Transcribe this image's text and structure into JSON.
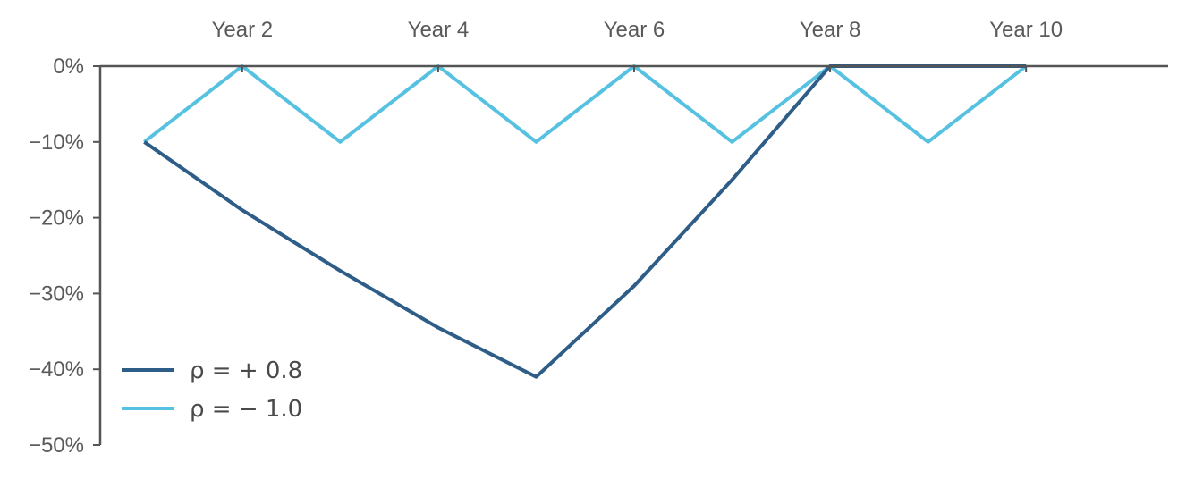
{
  "chart_data": {
    "type": "line",
    "title": "",
    "xlabel": "",
    "ylabel": "",
    "x": [
      1,
      2,
      3,
      4,
      5,
      6,
      7,
      8,
      9,
      10
    ],
    "x_tick_values": [
      2,
      4,
      6,
      8,
      10
    ],
    "x_tick_labels": [
      "Year 2",
      "Year 4",
      "Year 6",
      "Year 8",
      "Year 10"
    ],
    "x_axis_position": "top",
    "xlim": [
      0.55,
      11.45
    ],
    "ylim": [
      -50,
      0
    ],
    "y_tick_values": [
      0,
      -10,
      -20,
      -30,
      -40,
      -50
    ],
    "y_tick_labels": [
      "0%",
      "−10%",
      "−20%",
      "−30%",
      "−40%",
      "−50%"
    ],
    "grid": false,
    "legend_position": "bottom-left",
    "series": [
      {
        "name": "ρ = + 0.8",
        "color": "#2e5d87",
        "values": [
          -10,
          -19,
          -27,
          -34.5,
          -41,
          -29,
          -15,
          0,
          0,
          0
        ]
      },
      {
        "name": "ρ = − 1.0",
        "color": "#56c1e0",
        "values": [
          -10,
          0,
          -10,
          0,
          -10,
          0,
          -10,
          0,
          -10,
          0
        ]
      }
    ]
  }
}
